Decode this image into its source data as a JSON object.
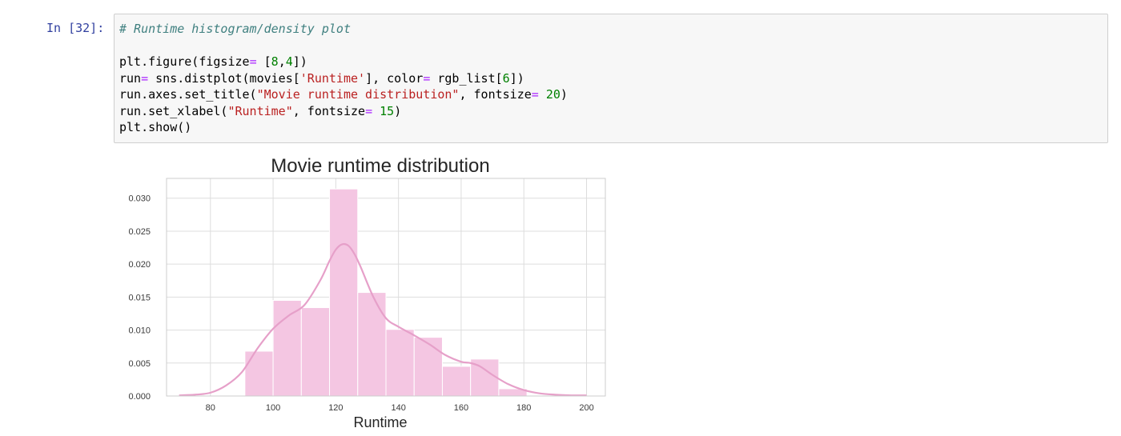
{
  "cell": {
    "prompt": "In [32]:",
    "code_lines": [
      "# Runtime histogram/density plot",
      "",
      "plt.figure(figsize= [8,4])",
      "run= sns.distplot(movies['Runtime'], color= rgb_list[6])",
      "run.axes.set_title(\"Movie runtime distribution\", fontsize= 20)",
      "run.set_xlabel(\"Runtime\", fontsize= 15)",
      "plt.show()"
    ]
  },
  "chart_data": {
    "type": "bar",
    "title": "Movie runtime distribution",
    "xlabel": "Runtime",
    "ylabel": "",
    "xlim": [
      66,
      206
    ],
    "ylim": [
      0,
      0.033
    ],
    "grid": true,
    "color": "#f4c6e2",
    "kde_color": "#e6a0c9",
    "x_ticks": [
      "80",
      "100",
      "120",
      "140",
      "160",
      "180",
      "200"
    ],
    "y_ticks": [
      "0.000",
      "0.005",
      "0.010",
      "0.015",
      "0.020",
      "0.025",
      "0.030"
    ],
    "bins": [
      {
        "x0": 91,
        "x1": 100,
        "value": 0.0068
      },
      {
        "x0": 100,
        "x1": 109,
        "value": 0.0145
      },
      {
        "x0": 109,
        "x1": 118,
        "value": 0.0134
      },
      {
        "x0": 118,
        "x1": 127,
        "value": 0.0314
      },
      {
        "x0": 127,
        "x1": 136,
        "value": 0.0157
      },
      {
        "x0": 136,
        "x1": 145,
        "value": 0.0101
      },
      {
        "x0": 145,
        "x1": 154,
        "value": 0.0089
      },
      {
        "x0": 154,
        "x1": 163,
        "value": 0.0045
      },
      {
        "x0": 163,
        "x1": 172,
        "value": 0.0056
      },
      {
        "x0": 172,
        "x1": 181,
        "value": 0.0011
      }
    ],
    "kde": {
      "x": [
        70,
        75,
        80,
        85,
        90,
        95,
        100,
        105,
        110,
        115,
        118,
        120,
        122,
        124,
        126,
        128,
        132,
        136,
        140,
        145,
        150,
        155,
        160,
        163,
        166,
        170,
        175,
        180,
        185,
        190,
        195,
        200
      ],
      "y": [
        0.0001,
        0.0002,
        0.0005,
        0.0016,
        0.0036,
        0.0072,
        0.0102,
        0.0122,
        0.0138,
        0.0175,
        0.0205,
        0.0222,
        0.023,
        0.0228,
        0.0215,
        0.0195,
        0.015,
        0.0118,
        0.0105,
        0.0092,
        0.0078,
        0.0062,
        0.0052,
        0.005,
        0.0045,
        0.0032,
        0.0018,
        0.0009,
        0.0004,
        0.0002,
        0.0001,
        0.0001
      ]
    }
  }
}
